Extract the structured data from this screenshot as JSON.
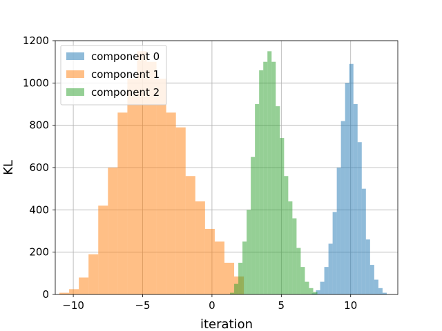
{
  "chart_data": {
    "type": "histogram",
    "title": "",
    "xlabel": "iteration",
    "ylabel": "KL",
    "xlim": [
      -11.3,
      13.4
    ],
    "ylim": [
      0,
      1200
    ],
    "xticks": [
      -10,
      -5,
      0,
      5,
      10
    ],
    "xtick_labels": [
      "−10",
      "−5",
      "0",
      "5",
      "10"
    ],
    "yticks": [
      0,
      200,
      400,
      600,
      800,
      1000,
      1200
    ],
    "ytick_labels": [
      "0",
      "200",
      "400",
      "600",
      "800",
      "1000",
      "1200"
    ],
    "grid": true,
    "legend_position": "top-left",
    "series": [
      {
        "name": "component 0",
        "color": "#1f77b4",
        "alpha": 0.5,
        "edges": [
          7.2,
          7.5,
          7.8,
          8.1,
          8.4,
          8.7,
          9.0,
          9.3,
          9.6,
          9.9,
          10.2,
          10.5,
          10.8,
          11.1,
          11.4,
          11.7,
          12.0,
          12.3,
          12.6
        ],
        "counts": [
          5,
          20,
          60,
          130,
          240,
          390,
          600,
          820,
          1000,
          1090,
          900,
          720,
          500,
          260,
          140,
          70,
          30,
          8
        ]
      },
      {
        "name": "component 1",
        "color": "#ff7f0e",
        "alpha": 0.5,
        "edges": [
          -11.0,
          -10.3,
          -9.6,
          -8.9,
          -8.2,
          -7.5,
          -6.8,
          -6.1,
          -5.4,
          -4.7,
          -4.0,
          -3.3,
          -2.6,
          -1.9,
          -1.2,
          -0.5,
          0.2,
          0.9,
          1.6,
          2.3
        ],
        "counts": [
          8,
          25,
          80,
          190,
          420,
          600,
          860,
          1020,
          1150,
          1100,
          1020,
          860,
          790,
          560,
          440,
          310,
          250,
          150,
          85
        ]
      },
      {
        "name": "component 2",
        "color": "#2ca02c",
        "alpha": 0.5,
        "edges": [
          1.3,
          1.6,
          1.9,
          2.2,
          2.5,
          2.8,
          3.1,
          3.4,
          3.7,
          4.0,
          4.3,
          4.6,
          4.9,
          5.2,
          5.5,
          5.8,
          6.1,
          6.4,
          6.7,
          7.0,
          7.3,
          7.6
        ],
        "counts": [
          8,
          50,
          150,
          250,
          400,
          650,
          900,
          1060,
          1100,
          1150,
          1100,
          890,
          740,
          560,
          440,
          360,
          220,
          130,
          60,
          30,
          12
        ]
      }
    ]
  }
}
